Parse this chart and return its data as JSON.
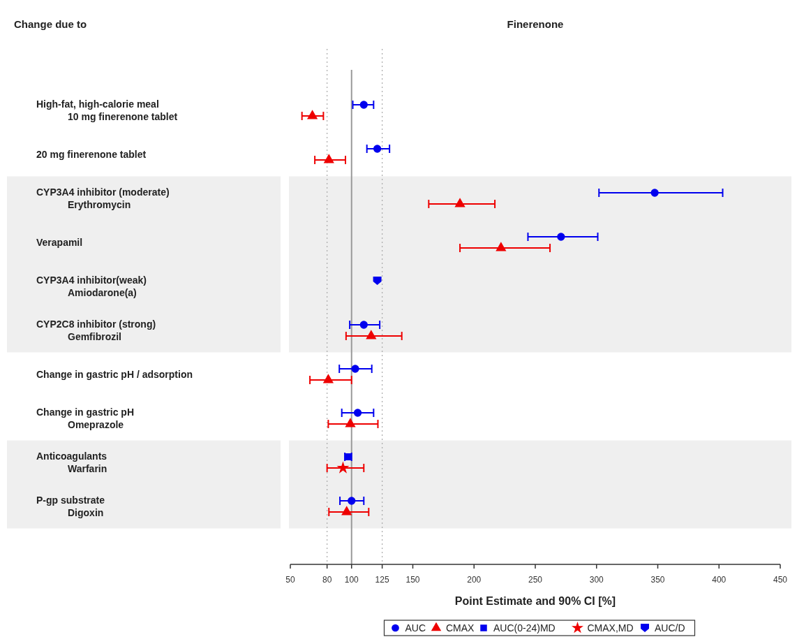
{
  "chart_data": {
    "type": "scatter",
    "orientation": "horizontal",
    "title": "Finerenone",
    "annotations": [
      "Change due to"
    ],
    "xlabel": "Point Estimate and 90% CI [%]",
    "categories": [
      "High-fat, high-calorie meal\n10 mg finerenone tablet",
      "20 mg finerenone tablet",
      "CYP3A4 inhibitor (moderate)\nErythromycin",
      "Verapamil",
      "CYP3A4 inhibitor(weak)\nAmiodarone(a)",
      "CYP2C8 inhibitor (strong)\nGemfibrozil",
      "Change in gastric pH / adsorption",
      "Change in gastric pH\nOmeprazole",
      "Anticoagulants\nWarfarin",
      "P-gp substrate\nDigoxin"
    ],
    "xlim": [
      50,
      450
    ],
    "xticks": [
      50,
      80,
      100,
      125,
      150,
      200,
      250,
      300,
      350,
      400,
      450
    ],
    "series": [
      {
        "name": "AUC",
        "color": "#0000ee",
        "marker": "circle",
        "values": [
          110,
          121,
          347.5,
          271,
          null,
          110,
          103,
          105,
          null,
          100
        ],
        "errors": [
          [
            101,
            118
          ],
          [
            112.5,
            131
          ],
          [
            302,
            403
          ],
          [
            244,
            301
          ],
          null,
          [
            98.5,
            123
          ],
          [
            90,
            116.5
          ],
          [
            92,
            118
          ],
          null,
          [
            90.5,
            110
          ]
        ]
      },
      {
        "name": "CMAX",
        "color": "#ee0000",
        "marker": "triangle",
        "values": [
          68,
          81.5,
          188.5,
          222,
          null,
          116,
          81,
          99,
          null,
          96
        ],
        "errors": [
          [
            59.5,
            77
          ],
          [
            70,
            95
          ],
          [
            163,
            217
          ],
          [
            188.5,
            262
          ],
          null,
          [
            95.5,
            141
          ],
          [
            66,
            100
          ],
          [
            81,
            121.5
          ],
          null,
          [
            81.5,
            114
          ]
        ]
      },
      {
        "name": "AUC(0-24)MD",
        "color": "#0000ee",
        "marker": "square",
        "values": [
          null,
          null,
          null,
          null,
          null,
          null,
          null,
          null,
          97,
          null
        ],
        "errors": [
          null,
          null,
          null,
          null,
          null,
          null,
          null,
          null,
          [
            94.5,
            100
          ],
          null
        ]
      },
      {
        "name": "CMAX,MD",
        "color": "#ee0000",
        "marker": "star",
        "values": [
          null,
          null,
          null,
          null,
          null,
          null,
          null,
          null,
          93,
          null
        ],
        "errors": [
          null,
          null,
          null,
          null,
          null,
          null,
          null,
          null,
          [
            80,
            110
          ],
          null
        ]
      },
      {
        "name": "AUC/D",
        "color": "#0000ee",
        "values": [
          null,
          null,
          null,
          null,
          121,
          null,
          null,
          null,
          null,
          null
        ]
      }
    ],
    "ref_lines": [
      {
        "axis": "x",
        "value": 80,
        "color": "#aaaaaa",
        "line_style": "dotted"
      },
      {
        "axis": "x",
        "value": 100,
        "color": "#999999",
        "line_style": "solid"
      },
      {
        "axis": "x",
        "value": 125,
        "color": "#aaaaaa",
        "line_style": "dotted"
      }
    ],
    "bands": [
      {
        "axis": "y",
        "from": "CYP3A4 inhibitor (moderate)\nErythromycin",
        "to": "CYP2C8 inhibitor (strong)\nGemfibrozil",
        "color": "#efefef"
      },
      {
        "axis": "y",
        "from": "Anticoagulants\nWarfarin",
        "to": "P-gp substrate\nDigoxin",
        "color": "#efefef"
      }
    ],
    "legend": "bottom",
    "grid": false
  }
}
